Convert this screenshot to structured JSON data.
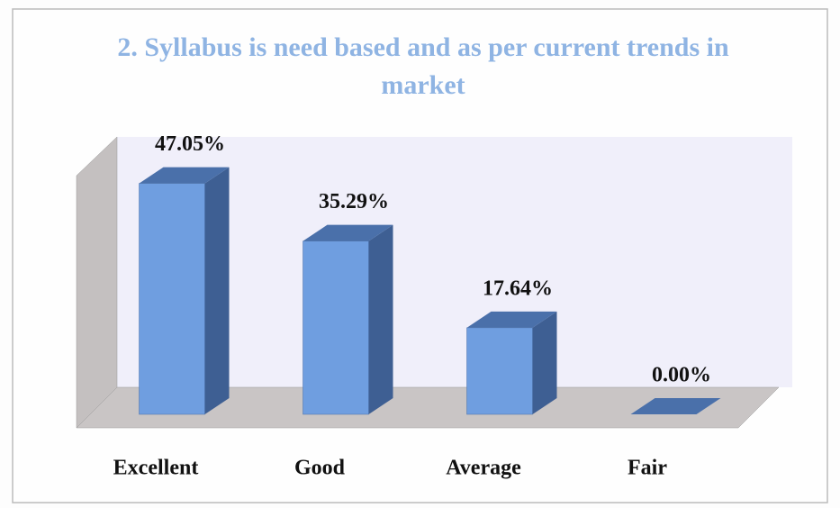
{
  "chart_data": {
    "type": "bar3d",
    "title": "2. Syllabus is need based and as per current trends in market",
    "categories": [
      "Excellent",
      "Good",
      "Average",
      "Fair"
    ],
    "values": [
      47.05,
      35.29,
      17.64,
      0
    ],
    "value_labels": [
      "47.05%",
      "35.29%",
      "17.64%",
      "0.00%"
    ],
    "color": "#6f9ee0"
  }
}
